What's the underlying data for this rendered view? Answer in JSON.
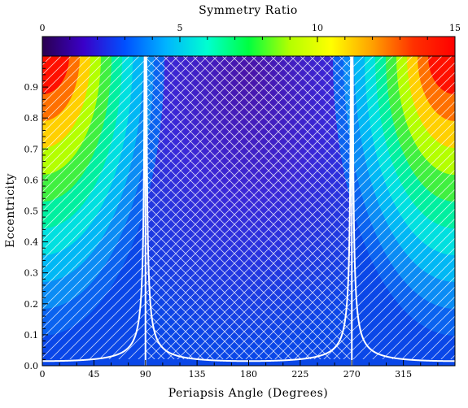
{
  "chart_data": {
    "type": "heatmap",
    "title": "",
    "xlabel": "Periapsis Angle (Degrees)",
    "ylabel": "Eccentricity",
    "xlim": [
      0,
      360
    ],
    "ylim": [
      0,
      1
    ],
    "x_ticks": [
      0,
      45,
      90,
      135,
      180,
      225,
      270,
      315
    ],
    "y_ticks": [
      0.0,
      0.1,
      0.2,
      0.3,
      0.4,
      0.5,
      0.6,
      0.7,
      0.8,
      0.9
    ],
    "x_tick_labels": [
      "0",
      "45",
      "90",
      "135",
      "180",
      "225",
      "270",
      "315"
    ],
    "y_tick_labels": [
      "0.0",
      "0.1",
      "0.2",
      "0.3",
      "0.4",
      "0.5",
      "0.6",
      "0.7",
      "0.8",
      "0.9"
    ],
    "colorbar": {
      "label": "Symmetry Ratio",
      "range": [
        0,
        15
      ],
      "ticks": [
        0,
        5,
        10,
        15
      ],
      "tick_labels": [
        "0",
        "5",
        "10",
        "15"
      ],
      "position": "top",
      "colormap": [
        "#2a0050",
        "#3a00c8",
        "#0050ff",
        "#00b4ff",
        "#00ffd0",
        "#00ff40",
        "#b4ff00",
        "#ffff00",
        "#ffa000",
        "#ff3000",
        "#ff0000"
      ]
    },
    "contour_band_colors": [
      "#0a47e8",
      "#0a63f0",
      "#0a8cf5",
      "#00b8f5",
      "#00e0e0",
      "#00f0a0",
      "#40f040",
      "#b4ff00",
      "#ffd000",
      "#ff7000",
      "#ff1000"
    ],
    "hatching": "diagonal outside 90–270 degrees, cross-hatched between 90 and 270 degrees",
    "boundary_curve": {
      "color": "#ffffff",
      "description": "white curve, eccentricity near 0.01 at 0, 180 and 360 degrees, rising steeply toward 1 at 90 and 270 degrees",
      "min_eccentricity": 0.015,
      "asymptotes_deg": [
        90,
        270
      ]
    },
    "grid": false,
    "legend": "none"
  }
}
